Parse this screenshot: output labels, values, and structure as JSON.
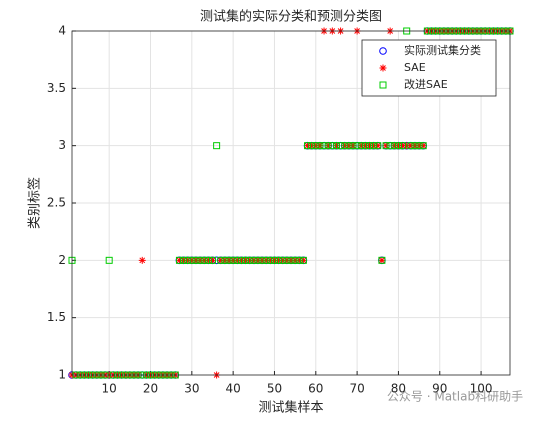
{
  "chart_data": {
    "type": "scatter",
    "title": "测试集的实际分类和预测分类图",
    "xlabel": "测试集样本",
    "ylabel": "类别标签",
    "watermark": "公众号 · Matlab科研助手",
    "x": [
      1,
      2,
      3,
      4,
      5,
      6,
      7,
      8,
      9,
      10,
      11,
      12,
      13,
      14,
      15,
      16,
      17,
      18,
      19,
      20,
      21,
      22,
      23,
      24,
      25,
      26,
      27,
      28,
      29,
      30,
      31,
      32,
      33,
      34,
      35,
      36,
      37,
      38,
      39,
      40,
      41,
      42,
      43,
      44,
      45,
      46,
      47,
      48,
      49,
      50,
      51,
      52,
      53,
      54,
      55,
      56,
      57,
      58,
      59,
      60,
      61,
      62,
      63,
      64,
      65,
      66,
      67,
      68,
      69,
      70,
      71,
      72,
      73,
      74,
      75,
      76,
      77,
      78,
      79,
      80,
      81,
      82,
      83,
      84,
      85,
      86,
      87,
      88,
      89,
      90,
      91,
      92,
      93,
      94,
      95,
      96,
      97,
      98,
      99,
      100,
      101,
      102,
      103,
      104,
      105,
      106,
      107
    ],
    "series": [
      {
        "name": "实际测试集分类",
        "color": "#0000ff",
        "marker": "circle",
        "values": [
          1,
          1,
          1,
          1,
          1,
          1,
          1,
          1,
          1,
          1,
          1,
          1,
          1,
          1,
          1,
          1,
          1,
          1,
          1,
          1,
          1,
          1,
          1,
          1,
          1,
          1,
          2,
          2,
          2,
          2,
          2,
          2,
          2,
          2,
          2,
          2,
          2,
          2,
          2,
          2,
          2,
          2,
          2,
          2,
          2,
          2,
          2,
          2,
          2,
          2,
          2,
          2,
          2,
          2,
          2,
          2,
          2,
          3,
          3,
          3,
          3,
          3,
          3,
          3,
          3,
          3,
          3,
          3,
          3,
          3,
          3,
          3,
          3,
          3,
          3,
          2,
          3,
          3,
          3,
          3,
          3,
          3,
          3,
          3,
          3,
          3,
          4,
          4,
          4,
          4,
          4,
          4,
          4,
          4,
          4,
          4,
          4,
          4,
          4,
          4,
          4,
          4,
          4,
          4,
          4,
          4,
          4
        ]
      },
      {
        "name": "SAE",
        "color": "#ff0000",
        "marker": "asterisk",
        "values": [
          1,
          1,
          1,
          1,
          1,
          1,
          1,
          1,
          1,
          1,
          1,
          1,
          1,
          1,
          1,
          1,
          1,
          2,
          1,
          1,
          1,
          1,
          1,
          1,
          1,
          1,
          2,
          2,
          2,
          2,
          2,
          2,
          2,
          2,
          2,
          1,
          2,
          2,
          2,
          2,
          2,
          2,
          2,
          2,
          2,
          2,
          2,
          2,
          2,
          2,
          2,
          2,
          2,
          2,
          2,
          2,
          2,
          3,
          3,
          3,
          3,
          4,
          3,
          4,
          3,
          4,
          3,
          3,
          3,
          4,
          3,
          3,
          3,
          3,
          3,
          2,
          3,
          4,
          3,
          3,
          3,
          3,
          3,
          3,
          3,
          3,
          4,
          4,
          4,
          4,
          4,
          4,
          4,
          4,
          4,
          4,
          4,
          4,
          4,
          4,
          4,
          4,
          4,
          4,
          4,
          4,
          4
        ]
      },
      {
        "name": "改进SAE",
        "color": "#00cc00",
        "marker": "square",
        "values": [
          2,
          1,
          1,
          1,
          1,
          1,
          1,
          1,
          1,
          2,
          1,
          1,
          1,
          1,
          1,
          1,
          1,
          1,
          1,
          1,
          1,
          1,
          1,
          1,
          1,
          1,
          2,
          2,
          2,
          2,
          2,
          2,
          2,
          2,
          2,
          3,
          2,
          2,
          2,
          2,
          2,
          2,
          2,
          2,
          2,
          2,
          2,
          2,
          2,
          2,
          2,
          2,
          2,
          2,
          2,
          2,
          2,
          3,
          3,
          3,
          3,
          3,
          3,
          3,
          3,
          3,
          3,
          3,
          3,
          3,
          3,
          3,
          3,
          3,
          3,
          2,
          3,
          3,
          3,
          3,
          3,
          4,
          3,
          3,
          3,
          3,
          4,
          4,
          4,
          4,
          4,
          4,
          4,
          4,
          4,
          4,
          4,
          4,
          4,
          4,
          4,
          4,
          4,
          4,
          4,
          4,
          4
        ]
      }
    ],
    "xlim": [
      1,
      107
    ],
    "xticks": [
      10,
      20,
      30,
      40,
      50,
      60,
      70,
      80,
      90,
      100
    ],
    "ylim": [
      1,
      4
    ],
    "yticks": [
      1,
      1.5,
      2,
      2.5,
      3,
      3.5,
      4
    ],
    "grid": true,
    "legend": "northeast"
  }
}
